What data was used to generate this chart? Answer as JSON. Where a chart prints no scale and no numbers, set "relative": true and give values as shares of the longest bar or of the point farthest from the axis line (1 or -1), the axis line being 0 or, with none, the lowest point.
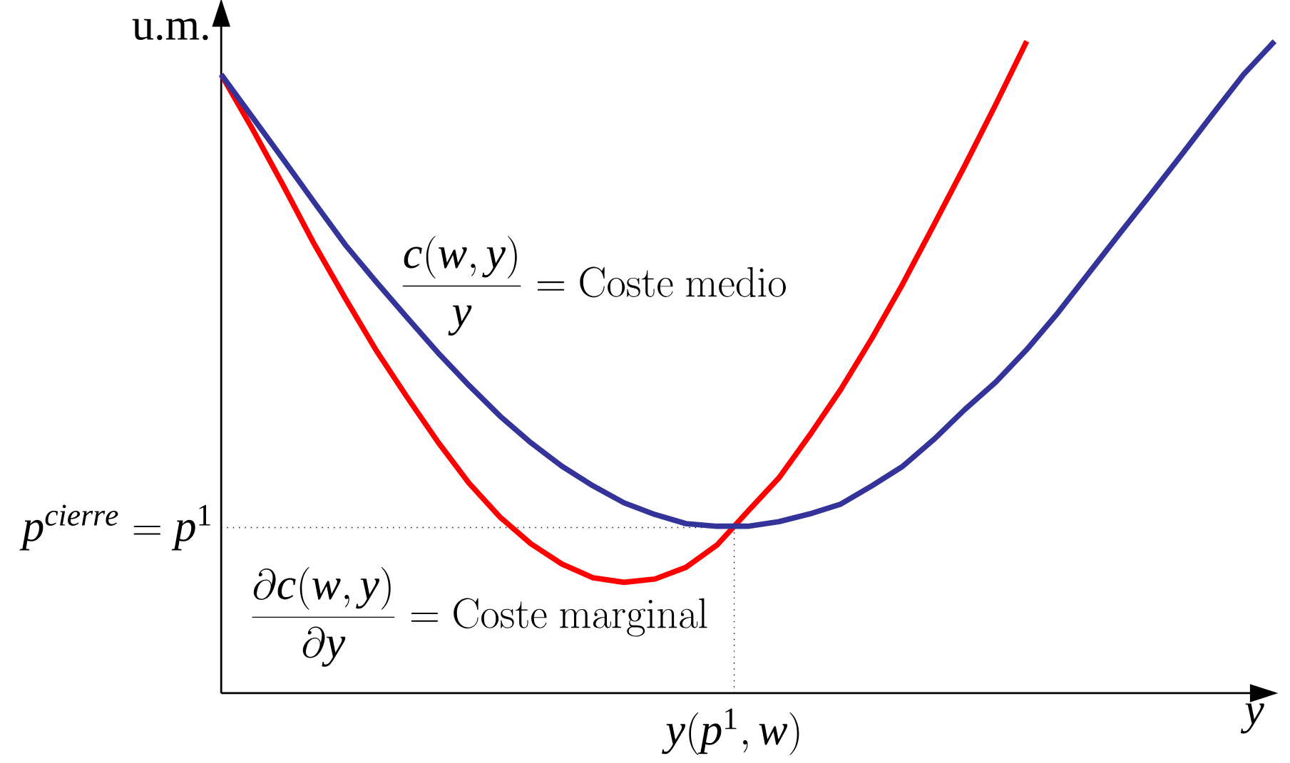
{
  "chart_data": {
    "type": "line",
    "relative": true,
    "ylabel": "u.m.",
    "xlabel": "*y*",
    "categories": [
      null,
      null,
      null,
      null,
      null,
      null,
      null,
      null,
      null,
      null,
      null,
      null,
      null,
      null,
      null,
      null,
      null,
      null,
      null,
      null,
      null,
      null,
      null,
      null,
      null,
      null,
      null,
      null,
      null,
      null,
      null,
      null,
      null,
      null,
      null
    ],
    "series": [
      {
        "color": "#ff0000",
        "values": [
          0.949,
          0.866,
          0.779,
          0.689,
          0.606,
          0.526,
          0.454,
          0.385,
          0.322,
          0.27,
          0.229,
          0.198,
          0.177,
          0.17,
          0.175,
          0.193,
          0.227,
          0.279,
          0.33,
          0.396,
          0.466,
          0.544,
          0.628,
          0.718,
          0.809,
          0.903,
          1,
          null,
          null,
          null,
          null,
          null,
          null,
          null,
          null
        ]
      },
      {
        "color": "#333399",
        "values": [
          0.949,
          0.884,
          0.819,
          0.753,
          0.688,
          0.631,
          0.576,
          0.522,
          0.472,
          0.425,
          0.384,
          0.348,
          0.318,
          0.292,
          0.274,
          0.26,
          0.256,
          0.256,
          0.263,
          0.275,
          0.29,
          0.318,
          0.348,
          0.389,
          0.435,
          0.477,
          0.527,
          0.583,
          0.644,
          0.705,
          0.765,
          0.826,
          0.888,
          0.949,
          1
        ]
      }
    ],
    "ref_lines": [
      {
        "axis": "y",
        "value": 0.254,
        "label": "p^{cierre}=p^{1}",
        "color": "#000000",
        "line_style": "dotted"
      }
    ],
    "annotations": [
      "\\frac{c(w,y)}{y}=\\mathrm{Coste\\ medio}",
      "\\frac{\\partial c(w,y)}{\\partial y}=\\mathrm{Coste\\ marginal}",
      "y(p^{1},w)"
    ]
  }
}
